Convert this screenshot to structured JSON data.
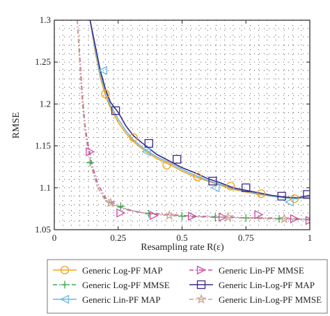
{
  "chart_data": {
    "type": "line",
    "title": "",
    "xlabel": "Resampling rate R(ε)",
    "ylabel": "RMSE",
    "xlim": [
      0,
      1
    ],
    "ylim": [
      1.05,
      1.3
    ],
    "xticks": [
      0,
      0.25,
      0.5,
      0.75,
      1
    ],
    "xtick_labels": [
      "0",
      "0.25",
      "0.5",
      "0.75",
      "1"
    ],
    "yticks": [
      1.05,
      1.1,
      1.15,
      1.2,
      1.25,
      1.3
    ],
    "ytick_labels": [
      "1.05",
      "1.1",
      "1.15",
      "1.2",
      "1.25",
      "1.3"
    ],
    "grid": "dotted",
    "legend_position": "below plot",
    "series": [
      {
        "name": "Generic Log-PF MAP",
        "color": "#f5a31a",
        "dash": "solid",
        "marker": "circle",
        "x": [
          0.14,
          0.16,
          0.18,
          0.2,
          0.22,
          0.25,
          0.28,
          0.31,
          0.35,
          0.4,
          0.45,
          0.5,
          0.55,
          0.6,
          0.65,
          0.7,
          0.75,
          0.8,
          0.85,
          0.9,
          0.95,
          1.0
        ],
        "y": [
          1.3,
          1.262,
          1.232,
          1.21,
          1.195,
          1.178,
          1.165,
          1.155,
          1.145,
          1.135,
          1.128,
          1.12,
          1.113,
          1.108,
          1.103,
          1.098,
          1.095,
          1.092,
          1.09,
          1.088,
          1.087,
          1.089
        ],
        "marker_x": [
          0.2,
          0.31,
          0.44,
          0.56,
          0.69,
          0.81,
          0.94
        ],
        "marker_y": [
          1.212,
          1.16,
          1.127,
          1.113,
          1.102,
          1.093,
          1.087
        ]
      },
      {
        "name": "Generic Log-PF MMSE",
        "color": "#3aa84a",
        "dash": "dashdot",
        "marker": "plus",
        "x": [
          0.09,
          0.1,
          0.11,
          0.12,
          0.13,
          0.15,
          0.17,
          0.2,
          0.25,
          0.3,
          0.35,
          0.4,
          0.45,
          0.5,
          0.55,
          0.6,
          0.65,
          0.7,
          0.75,
          0.8,
          0.85,
          0.9,
          0.95,
          1.0
        ],
        "y": [
          1.3,
          1.25,
          1.2,
          1.17,
          1.15,
          1.12,
          1.1,
          1.085,
          1.077,
          1.073,
          1.07,
          1.068,
          1.067,
          1.066,
          1.066,
          1.065,
          1.065,
          1.064,
          1.064,
          1.064,
          1.063,
          1.063,
          1.063,
          1.062
        ],
        "marker_x": [
          0.14,
          0.26,
          0.37,
          0.5,
          0.63,
          0.75,
          0.88,
          1.0
        ],
        "marker_y": [
          1.13,
          1.078,
          1.069,
          1.066,
          1.065,
          1.064,
          1.063,
          1.062
        ]
      },
      {
        "name": "Generic Lin-PF MAP",
        "color": "#6bb8e0",
        "dash": "solid",
        "marker": "triangle-left",
        "x": [
          0.14,
          0.16,
          0.18,
          0.2,
          0.22,
          0.25,
          0.28,
          0.31,
          0.35,
          0.4,
          0.45,
          0.5,
          0.55,
          0.6,
          0.65,
          0.7,
          0.75,
          0.8,
          0.85,
          0.9,
          0.95,
          1.0
        ],
        "y": [
          1.3,
          1.265,
          1.235,
          1.215,
          1.198,
          1.182,
          1.168,
          1.157,
          1.147,
          1.137,
          1.13,
          1.122,
          1.115,
          1.109,
          1.104,
          1.099,
          1.096,
          1.093,
          1.09,
          1.088,
          1.087,
          1.089
        ],
        "marker_x": [
          0.19,
          0.36,
          0.63,
          0.92
        ],
        "marker_y": [
          1.24,
          1.143,
          1.1,
          1.083
        ]
      },
      {
        "name": "Generic Lin-PF MMSE",
        "color": "#cc4aa0",
        "dash": "dashdot",
        "marker": "triangle-right",
        "x": [
          0.09,
          0.1,
          0.11,
          0.12,
          0.13,
          0.15,
          0.17,
          0.2,
          0.25,
          0.3,
          0.35,
          0.4,
          0.45,
          0.5,
          0.55,
          0.6,
          0.65,
          0.7,
          0.75,
          0.8,
          0.85,
          0.9,
          0.95,
          1.0
        ],
        "y": [
          1.3,
          1.255,
          1.21,
          1.175,
          1.155,
          1.125,
          1.105,
          1.088,
          1.078,
          1.073,
          1.07,
          1.069,
          1.068,
          1.067,
          1.066,
          1.066,
          1.065,
          1.065,
          1.064,
          1.064,
          1.064,
          1.063,
          1.063,
          1.062
        ],
        "marker_x": [
          0.14,
          0.26,
          0.39,
          0.54,
          0.66,
          0.8,
          0.94,
          1.0
        ],
        "marker_y": [
          1.143,
          1.07,
          1.067,
          1.066,
          1.065,
          1.068,
          1.063,
          1.061
        ]
      },
      {
        "name": "Generic Lin-Log-PF MAP",
        "color": "#3b2a8c",
        "dash": "solid",
        "marker": "square",
        "x": [
          0.14,
          0.16,
          0.18,
          0.2,
          0.22,
          0.25,
          0.28,
          0.31,
          0.35,
          0.4,
          0.45,
          0.5,
          0.55,
          0.6,
          0.65,
          0.7,
          0.75,
          0.8,
          0.85,
          0.9,
          0.95,
          1.0
        ],
        "y": [
          1.3,
          1.27,
          1.24,
          1.218,
          1.202,
          1.19,
          1.174,
          1.162,
          1.152,
          1.14,
          1.132,
          1.124,
          1.118,
          1.111,
          1.106,
          1.1,
          1.097,
          1.094,
          1.091,
          1.089,
          1.088,
          1.091
        ],
        "marker_x": [
          0.24,
          0.37,
          0.48,
          0.62,
          0.75,
          0.89,
          0.99
        ],
        "marker_y": [
          1.192,
          1.153,
          1.134,
          1.108,
          1.1,
          1.09,
          1.092
        ]
      },
      {
        "name": "Generic Lin-Log-PF MMSE",
        "color": "#c9a38f",
        "dash": "dashdot",
        "marker": "star",
        "x": [
          0.09,
          0.1,
          0.11,
          0.12,
          0.13,
          0.15,
          0.17,
          0.2,
          0.25,
          0.3,
          0.35,
          0.4,
          0.45,
          0.5,
          0.55,
          0.6,
          0.65,
          0.7,
          0.75,
          0.8,
          0.85,
          0.9,
          0.95,
          1.0
        ],
        "y": [
          1.3,
          1.245,
          1.2,
          1.168,
          1.148,
          1.12,
          1.1,
          1.086,
          1.077,
          1.072,
          1.07,
          1.068,
          1.067,
          1.066,
          1.065,
          1.065,
          1.065,
          1.064,
          1.064,
          1.063,
          1.063,
          1.063,
          1.062,
          1.062
        ],
        "marker_x": [
          0.22,
          0.45,
          0.68,
          0.9
        ],
        "marker_y": [
          1.082,
          1.067,
          1.065,
          1.063
        ]
      }
    ]
  }
}
